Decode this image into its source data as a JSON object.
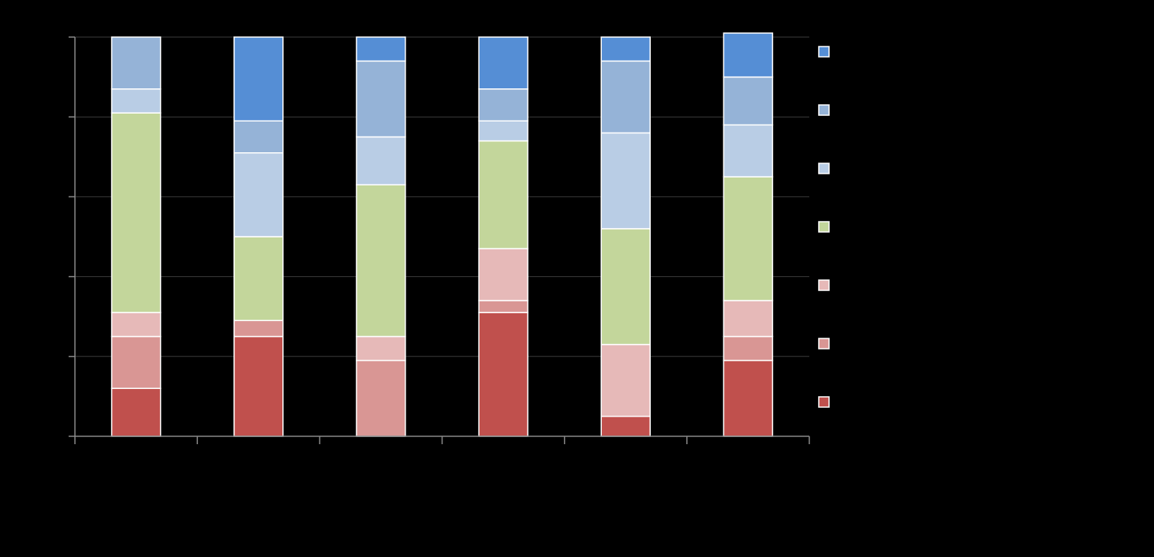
{
  "chart_data": {
    "type": "bar",
    "stacked": true,
    "percent": true,
    "title": "",
    "xlabel": "",
    "ylabel": "",
    "ylim": [
      0,
      1
    ],
    "grid": true,
    "legend_position": "right",
    "categories": [
      "",
      "",
      "",
      "",
      "",
      ""
    ],
    "series": [
      {
        "color": "#c0504d",
        "values": [
          0.12,
          0.25,
          0.0,
          0.31,
          0.05,
          0.19
        ]
      },
      {
        "color": "#d99694",
        "values": [
          0.13,
          0.04,
          0.19,
          0.03,
          0.0,
          0.06
        ]
      },
      {
        "color": "#e6b9b8",
        "values": [
          0.06,
          0.0,
          0.06,
          0.13,
          0.18,
          0.09
        ]
      },
      {
        "color": "#c3d69b",
        "values": [
          0.5,
          0.21,
          0.38,
          0.27,
          0.29,
          0.31
        ]
      },
      {
        "color": "#b9cde5",
        "values": [
          0.06,
          0.21,
          0.12,
          0.05,
          0.24,
          0.13
        ]
      },
      {
        "color": "#95b3d7",
        "values": [
          0.13,
          0.08,
          0.19,
          0.08,
          0.18,
          0.12
        ]
      },
      {
        "color": "#558ed5",
        "values": [
          0.0,
          0.21,
          0.06,
          0.13,
          0.06,
          0.11
        ]
      }
    ]
  }
}
